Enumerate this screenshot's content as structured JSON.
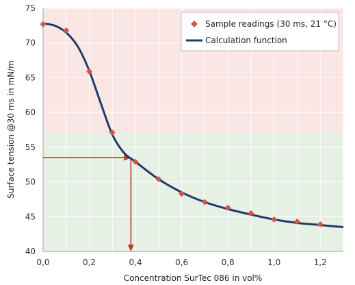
{
  "chart_data": {
    "type": "scatter",
    "title": "",
    "xlabel": "Concentration SurTec 086 in vol%",
    "ylabel": "Surface tension @30 ms in mN/m",
    "xlim": [
      0,
      1.3
    ],
    "ylim": [
      40,
      75
    ],
    "x_ticks": [
      "0,0",
      "0,2",
      "0,4",
      "0,6",
      "0,8",
      "1,0",
      "1,2"
    ],
    "y_ticks": [
      "40",
      "45",
      "50",
      "55",
      "60",
      "65",
      "70",
      "75"
    ],
    "grid": true,
    "legend_position": "top-right",
    "background_zones": [
      {
        "from": 57.3,
        "to": 75,
        "color": "#fbe6e6"
      },
      {
        "from": 40,
        "to": 57.3,
        "color": "#e6f0e5"
      }
    ],
    "series": [
      {
        "name": "Sample readings (30 ms, 21 °C)",
        "kind": "points",
        "color": "#d0584a",
        "x": [
          0.0,
          0.1,
          0.2,
          0.3,
          0.4,
          0.5,
          0.6,
          0.7,
          0.8,
          0.9,
          1.0,
          1.1,
          1.2
        ],
        "y": [
          72.7,
          71.8,
          65.9,
          57.1,
          52.9,
          50.4,
          48.3,
          47.1,
          46.3,
          45.5,
          44.6,
          44.3,
          43.9
        ]
      },
      {
        "name": "Calculation function",
        "kind": "line",
        "color": "#1f3a68",
        "x": [
          0.0,
          0.05,
          0.1,
          0.15,
          0.2,
          0.25,
          0.3,
          0.35,
          0.4,
          0.5,
          0.6,
          0.7,
          0.8,
          0.9,
          1.0,
          1.1,
          1.2,
          1.3
        ],
        "y": [
          72.8,
          72.5,
          71.5,
          69.5,
          66.0,
          61.3,
          56.8,
          54.2,
          52.9,
          50.4,
          48.5,
          47.1,
          46.1,
          45.3,
          44.6,
          44.1,
          43.8,
          43.5
        ]
      }
    ],
    "annotation_arrows": {
      "color": "#c0392b",
      "reading": {
        "x": 0.38,
        "y": 53.5
      }
    }
  }
}
